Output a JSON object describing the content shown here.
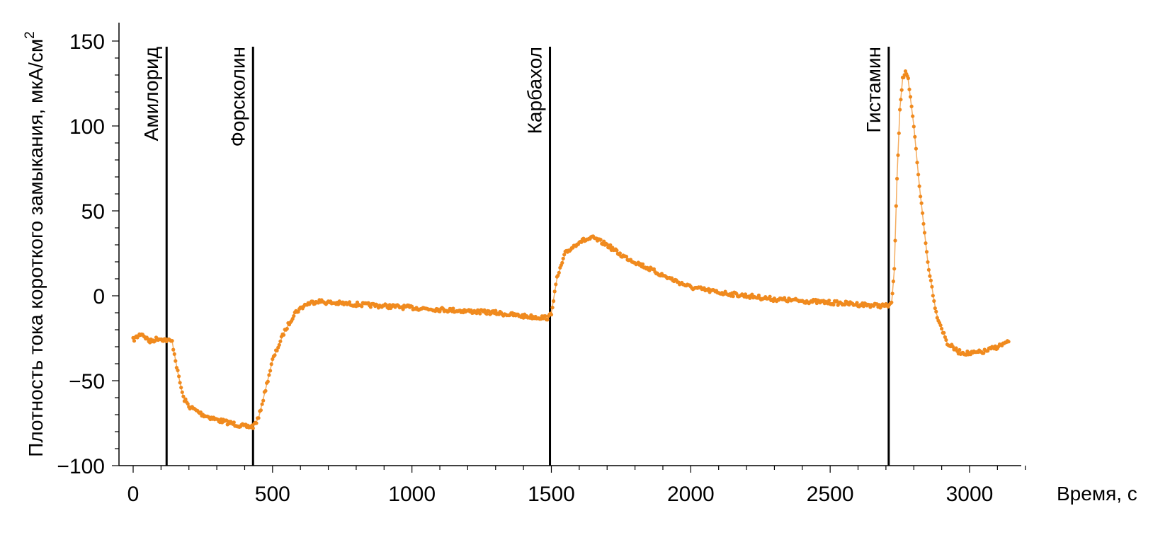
{
  "chart_data": {
    "type": "scatter",
    "xlabel": "Время, с",
    "ylabel": "Плотность тока короткого замыкания, мкА/см",
    "ylabel_superscript": "2",
    "xlim": [
      -50,
      3200
    ],
    "ylim": [
      -100,
      160
    ],
    "x_ticks": [
      0,
      500,
      1000,
      1500,
      2000,
      2500,
      3000
    ],
    "x_tick_labels": [
      "0",
      "500",
      "1000",
      "1500",
      "2000",
      "2500",
      "3000"
    ],
    "y_ticks": [
      -100,
      -50,
      0,
      50,
      100,
      150
    ],
    "y_tick_labels": [
      "−100",
      "−50",
      "0",
      "50",
      "100",
      "150"
    ],
    "grid": false,
    "series_color": "#F08A1E",
    "event_lines": [
      {
        "x": 120,
        "label": "Амилорид"
      },
      {
        "x": 430,
        "label": "Форсколин"
      },
      {
        "x": 1495,
        "label": "Карбахол"
      },
      {
        "x": 2710,
        "label": "Гистамин"
      }
    ],
    "series": [
      {
        "values": [
          [
            0,
            -26
          ],
          [
            30,
            -22
          ],
          [
            60,
            -27
          ],
          [
            90,
            -25
          ],
          [
            120,
            -26
          ],
          [
            140,
            -27
          ],
          [
            160,
            -45
          ],
          [
            180,
            -60
          ],
          [
            200,
            -65
          ],
          [
            250,
            -70
          ],
          [
            300,
            -73
          ],
          [
            350,
            -75
          ],
          [
            400,
            -77
          ],
          [
            430,
            -77
          ],
          [
            450,
            -72
          ],
          [
            475,
            -55
          ],
          [
            500,
            -38
          ],
          [
            540,
            -22
          ],
          [
            580,
            -10
          ],
          [
            620,
            -5
          ],
          [
            660,
            -3
          ],
          [
            700,
            -4
          ],
          [
            800,
            -5
          ],
          [
            900,
            -6
          ],
          [
            1000,
            -7
          ],
          [
            1100,
            -8
          ],
          [
            1200,
            -9
          ],
          [
            1300,
            -10
          ],
          [
            1400,
            -12
          ],
          [
            1490,
            -13
          ],
          [
            1500,
            -10
          ],
          [
            1520,
            10
          ],
          [
            1550,
            25
          ],
          [
            1600,
            32
          ],
          [
            1650,
            34
          ],
          [
            1700,
            30
          ],
          [
            1750,
            24
          ],
          [
            1800,
            20
          ],
          [
            1900,
            12
          ],
          [
            2000,
            5
          ],
          [
            2100,
            2
          ],
          [
            2200,
            0
          ],
          [
            2300,
            -2
          ],
          [
            2400,
            -3
          ],
          [
            2500,
            -4
          ],
          [
            2600,
            -5
          ],
          [
            2700,
            -6
          ],
          [
            2720,
            -5
          ],
          [
            2730,
            15
          ],
          [
            2740,
            70
          ],
          [
            2750,
            110
          ],
          [
            2760,
            128
          ],
          [
            2770,
            131
          ],
          [
            2780,
            127
          ],
          [
            2800,
            100
          ],
          [
            2820,
            65
          ],
          [
            2850,
            20
          ],
          [
            2880,
            -10
          ],
          [
            2920,
            -28
          ],
          [
            2960,
            -33
          ],
          [
            3000,
            -34
          ],
          [
            3050,
            -33
          ],
          [
            3100,
            -30
          ],
          [
            3140,
            -27
          ]
        ]
      }
    ]
  }
}
